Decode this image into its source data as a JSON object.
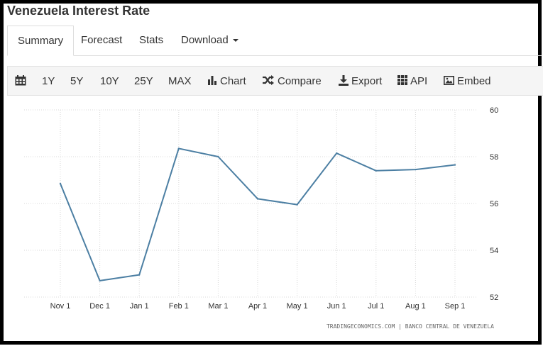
{
  "page": {
    "title": "Venezuela Interest Rate"
  },
  "tabs": [
    {
      "label": "Summary",
      "active": true
    },
    {
      "label": "Forecast"
    },
    {
      "label": "Stats"
    },
    {
      "label": "Download"
    }
  ],
  "toolbar": {
    "calendar_icon": "calendar-icon",
    "ranges": [
      "1Y",
      "5Y",
      "10Y",
      "25Y",
      "MAX"
    ],
    "chart_label": "Chart",
    "compare_label": "Compare",
    "export_label": "Export",
    "api_label": "API",
    "embed_label": "Embed"
  },
  "chart_data": {
    "type": "line",
    "title": "",
    "xlabel": "",
    "ylabel": "",
    "x": [
      "Nov 1",
      "Dec 1",
      "Jan 1",
      "Feb 1",
      "Mar 1",
      "Apr 1",
      "May 1",
      "Jun 1",
      "Jul 1",
      "Aug 1",
      "Sep 1"
    ],
    "series": [
      {
        "values": [
          56.85,
          52.7,
          52.95,
          58.35,
          58.0,
          56.2,
          55.95,
          58.15,
          57.4,
          57.45,
          57.65
        ],
        "color": "#4c7fa3"
      }
    ],
    "ylim": [
      52,
      60
    ],
    "yticks": [
      52,
      54,
      56,
      58,
      60
    ],
    "y_axis_position": "right",
    "grid": true,
    "source": "TRADINGECONOMICS.COM | BANCO CENTRAL DE VENEZUELA"
  }
}
